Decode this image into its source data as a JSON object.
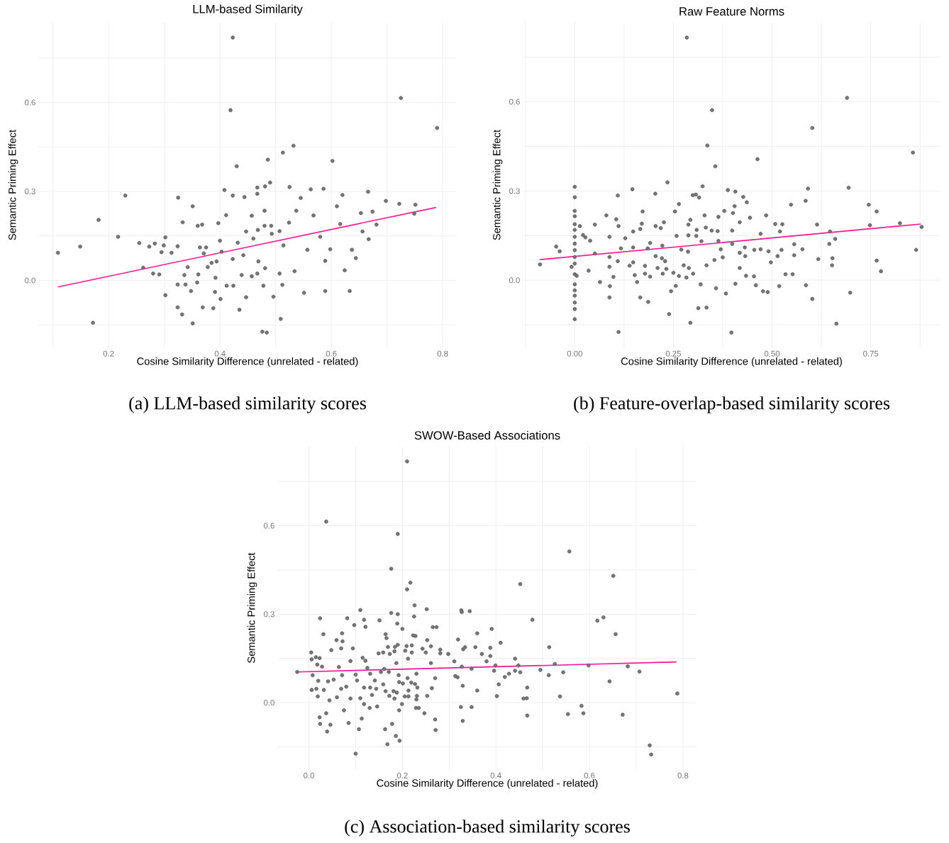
{
  "chart_data": [
    {
      "type": "scatter",
      "title": "LLM-based Similarity",
      "xlabel": "Cosine Similarity Difference (unrelated - related)",
      "ylabel": "Semantic Priming Effect",
      "annotations": [
        "(a) LLM-based similarity scores"
      ],
      "xlim": [
        0.075,
        0.824
      ],
      "ylim": [
        -0.226,
        0.869
      ],
      "xticks": [
        {
          "value": 0.1,
          "label": null
        },
        0.2,
        {
          "value": 0.3,
          "label": null
        },
        0.4,
        {
          "value": 0.5,
          "label": null
        },
        0.6,
        {
          "value": 0.7,
          "label": null
        },
        0.8
      ],
      "yticks": [
        {
          "value": -0.15,
          "label": null
        },
        {
          "value": 0,
          "label": "0.0"
        },
        {
          "value": 0.15,
          "label": null
        },
        {
          "value": 0.3,
          "label": "0.3"
        },
        {
          "value": 0.45,
          "label": null
        },
        {
          "value": 0.6,
          "label": "0.6"
        },
        {
          "value": 0.75,
          "label": null
        }
      ],
      "grid": true,
      "series": [
        {
          "type": "scatter",
          "marker": "circle",
          "color": "#5a5a5a",
          "x": [
            0.109,
            0.149,
            0.182,
            0.172,
            0.217,
            0.23,
            0.255,
            0.273,
            0.283,
            0.262,
            0.28,
            0.291,
            0.295,
            0.299,
            0.302,
            0.302,
            0.313,
            0.325,
            0.324,
            0.333,
            0.324,
            0.324,
            0.332,
            0.351,
            0.351,
            0.36,
            0.368,
            0.342,
            0.348,
            0.369,
            0.364,
            0.378,
            0.361,
            0.388,
            0.397,
            0.4,
            0.392,
            0.408,
            0.411,
            0.419,
            0.423,
            0.423,
            0.43,
            0.432,
            0.412,
            0.435,
            0.444,
            0.447,
            0.467,
            0.467,
            0.457,
            0.46,
            0.467,
            0.476,
            0.484,
            0.447,
            0.481,
            0.486,
            0.49,
            0.48,
            0.492,
            0.496,
            0.509,
            0.513,
            0.532,
            0.525,
            0.507,
            0.514,
            0.507,
            0.512,
            0.537,
            0.545,
            0.524,
            0.534,
            0.551,
            0.557,
            0.563,
            0.568,
            0.58,
            0.586,
            0.602,
            0.589,
            0.589,
            0.598,
            0.61,
            0.62,
            0.616,
            0.624,
            0.633,
            0.637,
            0.644,
            0.653,
            0.666,
            0.656,
            0.667,
            0.674,
            0.681,
            0.698,
            0.722,
            0.725,
            0.751,
            0.749,
            0.79,
            0.403,
            0.423,
            0.442,
            0.439,
            0.457,
            0.469,
            0.481,
            0.478,
            0.391,
            0.401,
            0.424,
            0.468,
            0.48,
            0.493,
            0.338,
            0.359,
            0.394,
            0.385,
            0.371,
            0.375,
            0.336
          ],
          "values": [
            0.093,
            0.114,
            0.204,
            -0.143,
            0.147,
            0.286,
            0.126,
            0.114,
            0.124,
            0.043,
            0.023,
            0.02,
            0.095,
            0.118,
            0.145,
            -0.05,
            0.093,
            0.279,
            0.115,
            0.196,
            -0.014,
            -0.091,
            -0.115,
            0.25,
            -0.145,
            0.184,
            0.188,
            0.045,
            -0.036,
            -0.091,
            0.111,
            0.045,
            0.02,
            -0.094,
            0.193,
            0.134,
            0.009,
            0.305,
            0.22,
            0.574,
            0.819,
            0.286,
            0.385,
            0.127,
            -0.018,
            -0.099,
            0.281,
            0.165,
            0.313,
            0.292,
            0.218,
            0.141,
            0.023,
            -0.173,
            -0.176,
            -0.057,
            0.317,
            0.407,
            0.33,
            0.235,
            0.184,
            -0.055,
            -0.13,
            0.431,
            0.454,
            0.315,
            0.166,
            0.118,
            0.023,
            -0.015,
            0.235,
            0.278,
            0.195,
            0.031,
            -0.042,
            0.103,
            0.307,
            0.219,
            0.147,
            0.309,
            0.403,
            0.066,
            -0.036,
            0.105,
            0.25,
            0.288,
            0.19,
            0.034,
            -0.036,
            0.103,
            0.075,
            0.227,
            0.299,
            0.165,
            0.139,
            0.232,
            0.188,
            0.268,
            0.258,
            0.615,
            0.255,
            0.225,
            0.514,
            0.097,
            0.072,
            0.085,
            0.018,
            0.014,
            0.064,
            0.041,
            -0.018,
            -0.039,
            -0.063,
            -0.018,
            0.17,
            0.184,
            0.157,
            -0.014,
            -0.007,
            0.064,
            0.059,
            0.091,
            0.111,
            0.018
          ]
        },
        {
          "type": "line",
          "color": "#ff1493",
          "x": [
            0.109,
            0.788
          ],
          "values": [
            -0.022,
            0.246
          ]
        }
      ]
    },
    {
      "type": "scatter",
      "title": "Raw Feature Norms",
      "xlabel": "Cosine Similarity Difference (unrelated - related)",
      "ylabel": "Semantic Priming Effect",
      "annotations": [
        "(b) Feature-overlap-based similarity scores"
      ],
      "xlim": [
        -0.13,
        0.925
      ],
      "ylim": [
        -0.226,
        0.866
      ],
      "xticks": [
        {
          "value": -0.125,
          "label": null
        },
        {
          "value": 0,
          "label": "0.00"
        },
        {
          "value": 0.125,
          "label": null
        },
        0.25,
        {
          "value": 0.375,
          "label": null
        },
        {
          "value": 0.5,
          "label": "0.50"
        },
        {
          "value": 0.625,
          "label": null
        },
        0.75,
        {
          "value": 0.875,
          "label": null
        }
      ],
      "yticks": [
        {
          "value": -0.15,
          "label": null
        },
        {
          "value": 0,
          "label": "0.0"
        },
        {
          "value": 0.15,
          "label": null
        },
        {
          "value": 0.3,
          "label": "0.3"
        },
        {
          "value": 0.45,
          "label": null
        },
        {
          "value": 0.6,
          "label": "0.6"
        },
        {
          "value": 0.75,
          "label": null
        }
      ],
      "grid": true,
      "series": [
        {
          "type": "scatter",
          "marker": "circle",
          "color": "#5a5a5a",
          "x": [
            0,
            0,
            0,
            0,
            0,
            0,
            0,
            0,
            0,
            0,
            0,
            0,
            0,
            0,
            0,
            0,
            0,
            0,
            -0.088,
            -0.047,
            -0.038,
            0.013,
            0.021,
            0.027,
            0.039,
            0.035,
            0.005,
            -0.008,
            0.051,
            0.051,
            0.064,
            0.08,
            0.088,
            0.088,
            0.088,
            0.089,
            0.088,
            0.109,
            0.105,
            0.111,
            0.109,
            0.098,
            0.111,
            0.117,
            0.128,
            0.139,
            0.146,
            0.148,
            0.148,
            0.148,
            0.152,
            0.158,
            0.166,
            0.172,
            0.17,
            0.166,
            0.178,
            0.178,
            0.185,
            0.186,
            0.191,
            0.191,
            0.204,
            0.205,
            0.205,
            0.21,
            0.218,
            0.221,
            0.226,
            0.222,
            0.229,
            0.232,
            0.223,
            0.235,
            0.239,
            0.244,
            0.254,
            0.264,
            0.258,
            0.25,
            0.256,
            0.264,
            0.27,
            0.276,
            0.283,
            0.288,
            0.288,
            0.287,
            0.289,
            0.293,
            0.293,
            0.284,
            0.299,
            0.307,
            0.315,
            0.309,
            0.308,
            0.3,
            0.313,
            0.319,
            0.321,
            0.324,
            0.329,
            0.332,
            0.334,
            0.334,
            0.336,
            0.347,
            0.348,
            0.354,
            0.356,
            0.358,
            0.364,
            0.362,
            0.364,
            0.37,
            0.375,
            0.379,
            0.383,
            0.388,
            0.401,
            0.399,
            0.399,
            0.397,
            0.405,
            0.407,
            0.407,
            0.418,
            0.418,
            0.418,
            0.427,
            0.431,
            0.432,
            0.436,
            0.434,
            0.444,
            0.454,
            0.455,
            0.459,
            0.463,
            0.471,
            0.471,
            0.477,
            0.485,
            0.489,
            0.491,
            0.497,
            0.508,
            0.514,
            0.518,
            0.52,
            0.524,
            0.526,
            0.534,
            0.548,
            0.552,
            0.556,
            0.556,
            0.577,
            0.585,
            0.586,
            0.591,
            0.602,
            0.602,
            0.614,
            0.617,
            0.645,
            0.647,
            0.652,
            0.653,
            0.66,
            0.663,
            0.69,
            0.694,
            0.698,
            0.745,
            0.748,
            0.765,
            0.765,
            0.776,
            0.824,
            0.857,
            0.865,
            0.879
          ],
          "values": [
            0.314,
            0.279,
            0.233,
            0.215,
            0.188,
            0.169,
            0.146,
            0.123,
            0.101,
            0.078,
            0.056,
            0.02,
            -0.014,
            -0.034,
            -0.052,
            -0.075,
            -0.097,
            -0.131,
            0.053,
            0.113,
            0.097,
            0.182,
            0.152,
            0.144,
            0.133,
            0.032,
            0.015,
            0.045,
            0.187,
            0.09,
            -0.006,
            0.218,
            0.146,
            0.078,
            0.045,
            -0.02,
            -0.058,
            0.285,
            0.205,
            0.182,
            0.064,
            0.011,
            -0.174,
            0.107,
            0.141,
            0.049,
            0.306,
            0.164,
            0.11,
            0.06,
            0.017,
            -0.006,
            0.172,
            0.231,
            0.19,
            -0.058,
            0.048,
            0.022,
            0.107,
            -0.073,
            0.125,
            0.012,
            0.291,
            0.182,
            0.081,
            0.041,
            0.175,
            0.074,
            0.195,
            0.116,
            0.064,
            0.038,
            0.022,
            0.329,
            -0.114,
            -0.037,
            0.231,
            0.256,
            0.149,
            0.025,
            -0.019,
            0.014,
            0.103,
            0.05,
            0.009,
            0.187,
            0.151,
            0.096,
            0.041,
            0.203,
            -0.143,
            0.816,
            0.286,
            0.288,
            0.278,
            0.169,
            0.149,
            0.022,
            -0.094,
            -0.014,
            0.131,
            0.316,
            0.218,
            0.177,
            0.05,
            -0.092,
            0.453,
            0.167,
            0.572,
            0.068,
            0.383,
            -0.027,
            0.213,
            0.165,
            0.132,
            0.104,
            0.077,
            0.233,
            -0.045,
            0.303,
            0.226,
            0.167,
            0.122,
            -0.176,
            0.249,
            0.298,
            -0.012,
            0.195,
            0.092,
            0.041,
            0.28,
            0.11,
            0.081,
            0.262,
            0.015,
            0.21,
            0.013,
            0.102,
            -0.017,
            0.407,
            0.156,
            0.104,
            -0.037,
            0.218,
            -0.04,
            0.097,
            0.06,
            0.189,
            0.081,
            -0.02,
            0.164,
            0.102,
            0.188,
            0.02,
            0.254,
            0.02,
            0.121,
            0.084,
            0.104,
            0.267,
            -0.017,
            0.308,
            0.512,
            -0.063,
            0.187,
            0.071,
            0.122,
            0.164,
            0.05,
            0.074,
            0.139,
            -0.146,
            0.613,
            0.311,
            -0.042,
            0.254,
            0.185,
            0.231,
            0.066,
            0.03,
            0.192,
            0.429,
            0.102,
            0.179
          ]
        },
        {
          "type": "line",
          "color": "#ff1493",
          "x": [
            -0.089,
            0.877
          ],
          "values": [
            0.069,
            0.189
          ]
        }
      ]
    },
    {
      "type": "scatter",
      "title": "SWOW-Based Associations",
      "xlabel": "Cosine Similarity Difference (unrelated - related)",
      "ylabel": "Semantic Priming Effect",
      "annotations": [
        "(c) Association-based similarity scores"
      ],
      "xlim": [
        -0.066,
        0.829
      ],
      "ylim": [
        -0.226,
        0.868
      ],
      "xticks": [
        {
          "value": 0,
          "label": "0.0"
        },
        {
          "value": 0.1,
          "label": null
        },
        0.2,
        {
          "value": 0.3,
          "label": null
        },
        0.4,
        {
          "value": 0.5,
          "label": null
        },
        0.6,
        {
          "value": 0.7,
          "label": null
        },
        0.8
      ],
      "yticks": [
        {
          "value": -0.15,
          "label": null
        },
        {
          "value": 0,
          "label": "0.0"
        },
        {
          "value": 0.15,
          "label": null
        },
        {
          "value": 0.3,
          "label": "0.3"
        },
        {
          "value": 0.45,
          "label": null
        },
        {
          "value": 0.6,
          "label": "0.6"
        },
        {
          "value": 0.75,
          "label": null
        }
      ],
      "grid": true,
      "series": [
        {
          "type": "scatter",
          "marker": "circle",
          "color": "#5a5a5a",
          "x": [
            -0.025,
            0.005,
            0.006,
            0.008,
            0.006,
            0.015,
            0.023,
            0.018,
            0.028,
            0.02,
            0.016,
            0.032,
            0.019,
            0.024,
            0.031,
            0.037,
            0.023,
            0.024,
            0.037,
            0.039,
            0.046,
            0.044,
            0.041,
            0.048,
            0.053,
            0.059,
            0.064,
            0.071,
            0.072,
            0.069,
            0.071,
            0.069,
            0.06,
            0.075,
            0.08,
            0.082,
            0.085,
            0.089,
            0.089,
            0.094,
            0.097,
            0.1,
            0.1,
            0.103,
            0.107,
            0.11,
            0.11,
            0.113,
            0.115,
            0.118,
            0.121,
            0.121,
            0.118,
            0.118,
            0.125,
            0.131,
            0.131,
            0.13,
            0.135,
            0.141,
            0.144,
            0.146,
            0.149,
            0.151,
            0.154,
            0.159,
            0.159,
            0.161,
            0.163,
            0.164,
            0.166,
            0.164,
            0.168,
            0.169,
            0.171,
            0.173,
            0.172,
            0.176,
            0.176,
            0.178,
            0.181,
            0.183,
            0.184,
            0.183,
            0.186,
            0.187,
            0.19,
            0.19,
            0.189,
            0.19,
            0.188,
            0.192,
            0.193,
            0.194,
            0.193,
            0.2,
            0.199,
            0.201,
            0.205,
            0.206,
            0.209,
            0.21,
            0.21,
            0.211,
            0.212,
            0.213,
            0.213,
            0.217,
            0.219,
            0.22,
            0.22,
            0.223,
            0.225,
            0.226,
            0.228,
            0.227,
            0.23,
            0.23,
            0.232,
            0.229,
            0.231,
            0.235,
            0.243,
            0.247,
            0.25,
            0.252,
            0.253,
            0.253,
            0.261,
            0.261,
            0.263,
            0.265,
            0.27,
            0.27,
            0.271,
            0.273,
            0.281,
            0.281,
            0.298,
            0.311,
            0.313,
            0.318,
            0.319,
            0.325,
            0.326,
            0.327,
            0.327,
            0.329,
            0.329,
            0.33,
            0.334,
            0.344,
            0.348,
            0.348,
            0.356,
            0.36,
            0.36,
            0.37,
            0.38,
            0.388,
            0.388,
            0.391,
            0.396,
            0.399,
            0.402,
            0.406,
            0.41,
            0.419,
            0.428,
            0.441,
            0.441,
            0.448,
            0.452,
            0.452,
            0.467,
            0.467,
            0.459,
            0.466,
            0.478,
            0.495,
            0.513,
            0.514,
            0.526,
            0.537,
            0.544,
            0.554,
            0.557,
            0.583,
            0.587,
            0.598,
            0.617,
            0.63,
            0.643,
            0.651,
            0.656,
            0.671,
            0.682,
            0.707,
            0.729,
            0.732,
            0.788
          ],
          "values": [
            0.104,
            0.17,
            0.147,
            0.093,
            0.043,
            0.154,
            0.151,
            0.129,
            0.122,
            0.074,
            0.047,
            0.043,
            0.021,
            0.286,
            0.232,
            0.614,
            -0.05,
            -0.072,
            -0.036,
            -0.098,
            -0.075,
            0.008,
            0.072,
            0.178,
            0.078,
            0.212,
            0.121,
            0.235,
            0.208,
            0.184,
            0.093,
            0.047,
            0.018,
            -0.026,
            0.054,
            0.286,
            -0.069,
            0.141,
            0.014,
            0.184,
            0.263,
            0.095,
            -0.173,
            0.075,
            -0.09,
            0.314,
            0.015,
            -0.054,
            0.152,
            0.281,
            0.257,
            0.142,
            -0.005,
            0.051,
            0.118,
            0.098,
            0.051,
            -0.018,
            0.026,
            0.075,
            0.047,
            -0.013,
            0.167,
            0.279,
            0.104,
            0.17,
            0.062,
            0.114,
            -0.09,
            0.232,
            0.219,
            0.039,
            -0.141,
            0.189,
            0.104,
            0.165,
            0.023,
            0.454,
            0.304,
            -0.072,
            0.039,
            0.174,
            0.189,
            0.014,
            -0.113,
            0.134,
            0.572,
            0.3,
            0.268,
            0.196,
            0.034,
            0.093,
            -0.026,
            -0.129,
            0.07,
            0.25,
            -0.005,
            0.065,
            0.021,
            0.176,
            0.192,
            0.818,
            0.384,
            0.083,
            0.149,
            0.041,
            0.021,
            0.407,
            0.068,
            0.194,
            0.17,
            0.228,
            0.292,
            0.33,
            0.226,
            0.063,
            0.098,
            0.011,
            0.051,
            -0.018,
            0.023,
            -0.018,
            0.183,
            -0.036,
            0.17,
            0.317,
            0.212,
            0.023,
            0.191,
            0.134,
            0.049,
            0.256,
            0.083,
            -0.057,
            -0.093,
            0.256,
            0.18,
            0.167,
            0.165,
            0.14,
            0.09,
            0.086,
            0.214,
            -0.015,
            0.313,
            0.307,
            0.122,
            0.057,
            -0.062,
            0.181,
            0.188,
            0.31,
            0.115,
            -0.015,
            0.188,
            0.235,
            0.041,
            0.165,
            0.14,
            0.186,
            0.158,
            0.25,
            0.108,
            0.126,
            0.022,
            0.062,
            0.203,
            0.087,
            0.098,
            0.149,
            0.108,
            0.126,
            0.103,
            0.402,
            0.051,
            -0.044,
            0.014,
            0.015,
            0.281,
            0.111,
            0.093,
            0.188,
            0.131,
            0.021,
            0.103,
            -0.039,
            0.513,
            -0.011,
            -0.036,
            0.126,
            0.278,
            0.289,
            0.072,
            0.43,
            0.232,
            -0.041,
            0.123,
            0.105,
            -0.145,
            -0.176,
            0.031
          ]
        },
        {
          "type": "line",
          "color": "#ff1493",
          "x": [
            -0.025,
            0.786
          ],
          "values": [
            0.104,
            0.138
          ]
        }
      ]
    }
  ]
}
